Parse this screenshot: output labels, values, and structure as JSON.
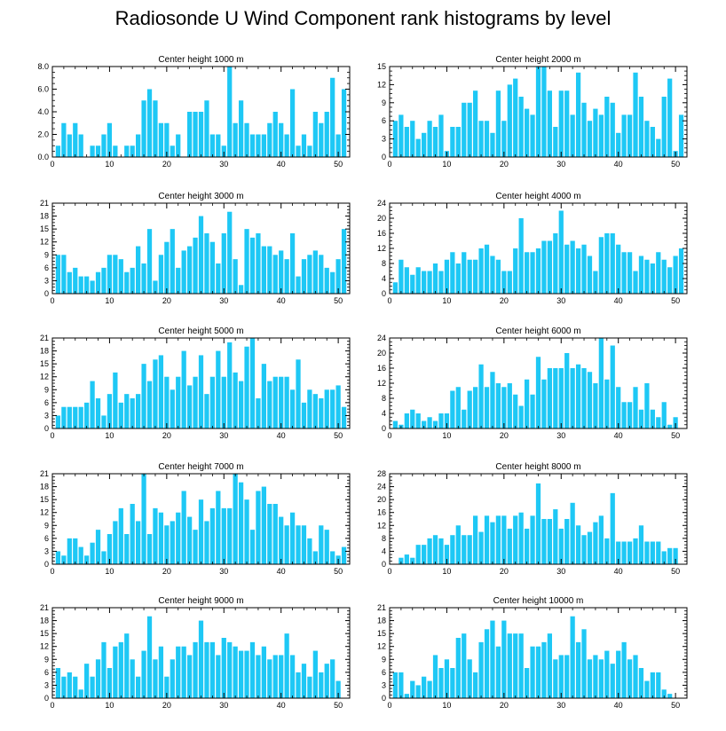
{
  "title": "Radiosonde U Wind Component rank histograms by level",
  "bar_color": "#1ec8f5",
  "chart_data": [
    {
      "type": "bar",
      "title": "Center height 1000 m",
      "xlabel": "",
      "ylabel": "",
      "xlim": [
        0,
        52
      ],
      "ylim": [
        0,
        8
      ],
      "yticks": [
        0,
        2,
        4,
        6,
        8
      ],
      "ytick_labels": [
        "0.0",
        "2.0",
        "4.0",
        "6.0",
        "8.0"
      ],
      "xticks": [
        0,
        10,
        20,
        30,
        40,
        50
      ],
      "values": [
        1,
        3,
        2,
        3,
        2,
        0,
        1,
        1,
        2,
        3,
        1,
        0,
        1,
        1,
        2,
        5,
        6,
        5,
        3,
        3,
        1,
        2,
        0,
        4,
        4,
        4,
        5,
        2,
        2,
        1,
        8,
        3,
        5,
        3,
        2,
        2,
        2,
        3,
        4,
        3,
        2,
        6,
        1,
        2,
        1,
        4,
        3,
        4,
        7,
        2,
        6
      ]
    },
    {
      "type": "bar",
      "title": "Center height 2000 m",
      "xlabel": "",
      "ylabel": "",
      "xlim": [
        0,
        52
      ],
      "ylim": [
        0,
        15
      ],
      "yticks": [
        0,
        3,
        6,
        9,
        12,
        15
      ],
      "ytick_labels": [
        "0",
        "3",
        "6",
        "9",
        "12",
        "15"
      ],
      "xticks": [
        0,
        10,
        20,
        30,
        40,
        50
      ],
      "values": [
        6,
        7,
        5,
        6,
        3,
        4,
        6,
        5,
        7,
        1,
        5,
        5,
        9,
        9,
        11,
        6,
        6,
        4,
        11,
        6,
        12,
        13,
        10,
        8,
        7,
        15,
        15,
        11,
        5,
        11,
        11,
        7,
        14,
        9,
        6,
        8,
        7,
        10,
        9,
        4,
        7,
        7,
        14,
        10,
        6,
        5,
        3,
        10,
        13,
        1,
        7
      ]
    },
    {
      "type": "bar",
      "title": "Center height 3000 m",
      "xlabel": "",
      "ylabel": "",
      "xlim": [
        0,
        52
      ],
      "ylim": [
        0,
        21
      ],
      "yticks": [
        0,
        3,
        6,
        9,
        12,
        15,
        18,
        21
      ],
      "ytick_labels": [
        "0",
        "3",
        "6",
        "9",
        "12",
        "15",
        "18",
        "21"
      ],
      "xticks": [
        0,
        10,
        20,
        30,
        40,
        50
      ],
      "values": [
        9,
        9,
        5,
        6,
        4,
        4,
        3,
        5,
        6,
        9,
        9,
        8,
        5,
        6,
        11,
        7,
        15,
        3,
        9,
        12,
        15,
        6,
        10,
        11,
        13,
        18,
        14,
        12,
        7,
        14,
        19,
        8,
        2,
        15,
        13,
        14,
        11,
        11,
        9,
        10,
        8,
        14,
        4,
        8,
        9,
        10,
        9,
        6,
        5,
        8,
        15
      ]
    },
    {
      "type": "bar",
      "title": "Center height 4000 m",
      "xlabel": "",
      "ylabel": "",
      "xlim": [
        0,
        52
      ],
      "ylim": [
        0,
        24
      ],
      "yticks": [
        0,
        4,
        8,
        12,
        16,
        20,
        24
      ],
      "ytick_labels": [
        "0",
        "4",
        "8",
        "12",
        "16",
        "20",
        "24"
      ],
      "xticks": [
        0,
        10,
        20,
        30,
        40,
        50
      ],
      "values": [
        3,
        9,
        7,
        5,
        7,
        6,
        6,
        8,
        6,
        9,
        11,
        8,
        11,
        9,
        9,
        12,
        13,
        10,
        9,
        6,
        6,
        12,
        20,
        11,
        11,
        12,
        14,
        14,
        16,
        22,
        13,
        14,
        12,
        13,
        10,
        6,
        15,
        16,
        16,
        13,
        11,
        11,
        6,
        10,
        9,
        8,
        11,
        9,
        7,
        10,
        12
      ]
    },
    {
      "type": "bar",
      "title": "Center height 5000 m",
      "xlabel": "",
      "ylabel": "",
      "xlim": [
        0,
        52
      ],
      "ylim": [
        0,
        21
      ],
      "yticks": [
        0,
        3,
        6,
        9,
        12,
        15,
        18,
        21
      ],
      "ytick_labels": [
        "0",
        "3",
        "6",
        "9",
        "12",
        "15",
        "18",
        "21"
      ],
      "xticks": [
        0,
        10,
        20,
        30,
        40,
        50
      ],
      "values": [
        3,
        5,
        5,
        5,
        5,
        6,
        11,
        7,
        3,
        8,
        13,
        6,
        8,
        7,
        8,
        15,
        11,
        16,
        17,
        12,
        9,
        12,
        18,
        10,
        12,
        17,
        8,
        12,
        18,
        12,
        20,
        13,
        11,
        19,
        21,
        7,
        15,
        11,
        12,
        12,
        12,
        9,
        16,
        6,
        9,
        8,
        7,
        9,
        9,
        10,
        5
      ]
    },
    {
      "type": "bar",
      "title": "Center height 6000 m",
      "xlabel": "",
      "ylabel": "",
      "xlim": [
        0,
        52
      ],
      "ylim": [
        0,
        24
      ],
      "yticks": [
        0,
        4,
        8,
        12,
        16,
        20,
        24
      ],
      "ytick_labels": [
        "0",
        "4",
        "8",
        "12",
        "16",
        "20",
        "24"
      ],
      "xticks": [
        0,
        10,
        20,
        30,
        40,
        50
      ],
      "values": [
        2,
        1,
        4,
        5,
        4,
        2,
        3,
        2,
        4,
        4,
        10,
        11,
        5,
        10,
        11,
        17,
        11,
        15,
        12,
        11,
        12,
        9,
        6,
        13,
        9,
        19,
        13,
        16,
        16,
        16,
        20,
        16,
        17,
        16,
        15,
        12,
        24,
        13,
        22,
        11,
        7,
        7,
        11,
        5,
        12,
        5,
        3,
        7,
        1,
        3,
        0
      ]
    },
    {
      "type": "bar",
      "title": "Center height 7000 m",
      "xlabel": "",
      "ylabel": "",
      "xlim": [
        0,
        52
      ],
      "ylim": [
        0,
        21
      ],
      "yticks": [
        0,
        3,
        6,
        9,
        12,
        15,
        18,
        21
      ],
      "ytick_labels": [
        "0",
        "3",
        "6",
        "9",
        "12",
        "15",
        "18",
        "21"
      ],
      "xticks": [
        0,
        10,
        20,
        30,
        40,
        50
      ],
      "values": [
        3,
        2,
        6,
        6,
        4,
        2,
        5,
        8,
        3,
        7,
        10,
        13,
        7,
        14,
        10,
        21,
        7,
        13,
        12,
        9,
        10,
        12,
        17,
        11,
        8,
        15,
        10,
        13,
        17,
        13,
        13,
        21,
        19,
        15,
        8,
        17,
        18,
        14,
        14,
        11,
        9,
        12,
        9,
        9,
        6,
        3,
        9,
        8,
        3,
        2,
        4
      ]
    },
    {
      "type": "bar",
      "title": "Center height 8000 m",
      "xlabel": "",
      "ylabel": "",
      "xlim": [
        0,
        52
      ],
      "ylim": [
        0,
        28
      ],
      "yticks": [
        0,
        4,
        8,
        12,
        16,
        20,
        24,
        28
      ],
      "ytick_labels": [
        "0",
        "4",
        "8",
        "12",
        "16",
        "20",
        "24",
        "28"
      ],
      "xticks": [
        0,
        10,
        20,
        30,
        40,
        50
      ],
      "values": [
        0,
        2,
        3,
        2,
        6,
        6,
        8,
        9,
        8,
        6,
        9,
        12,
        9,
        9,
        15,
        10,
        15,
        13,
        15,
        15,
        11,
        15,
        16,
        11,
        15,
        25,
        14,
        14,
        17,
        11,
        14,
        19,
        12,
        9,
        10,
        13,
        15,
        8,
        22,
        7,
        7,
        7,
        8,
        12,
        7,
        7,
        7,
        4,
        5,
        5,
        0
      ]
    },
    {
      "type": "bar",
      "title": "Center height 9000 m",
      "xlabel": "",
      "ylabel": "",
      "xlim": [
        0,
        52
      ],
      "ylim": [
        0,
        21
      ],
      "yticks": [
        0,
        3,
        6,
        9,
        12,
        15,
        18,
        21
      ],
      "ytick_labels": [
        "0",
        "3",
        "6",
        "9",
        "12",
        "15",
        "18",
        "21"
      ],
      "xticks": [
        0,
        10,
        20,
        30,
        40,
        50
      ],
      "values": [
        7,
        5,
        6,
        5,
        2,
        8,
        5,
        9,
        13,
        7,
        12,
        13,
        15,
        9,
        5,
        11,
        19,
        9,
        12,
        5,
        9,
        12,
        12,
        10,
        13,
        18,
        13,
        13,
        10,
        14,
        13,
        12,
        11,
        11,
        13,
        10,
        12,
        9,
        10,
        10,
        15,
        10,
        6,
        8,
        5,
        11,
        6,
        8,
        9,
        4,
        0
      ]
    },
    {
      "type": "bar",
      "title": "Center height 10000 m",
      "xlabel": "",
      "ylabel": "",
      "xlim": [
        0,
        52
      ],
      "ylim": [
        0,
        21
      ],
      "yticks": [
        0,
        3,
        6,
        9,
        12,
        15,
        18,
        21
      ],
      "ytick_labels": [
        "0",
        "3",
        "6",
        "9",
        "12",
        "15",
        "18",
        "21"
      ],
      "xticks": [
        0,
        10,
        20,
        30,
        40,
        50
      ],
      "values": [
        6,
        6,
        1,
        4,
        3,
        5,
        4,
        10,
        7,
        9,
        7,
        14,
        15,
        9,
        6,
        13,
        16,
        18,
        12,
        18,
        15,
        15,
        15,
        7,
        12,
        12,
        13,
        15,
        9,
        10,
        10,
        19,
        13,
        16,
        9,
        10,
        9,
        11,
        8,
        11,
        13,
        9,
        10,
        7,
        4,
        6,
        6,
        2,
        1,
        0,
        0
      ]
    }
  ]
}
